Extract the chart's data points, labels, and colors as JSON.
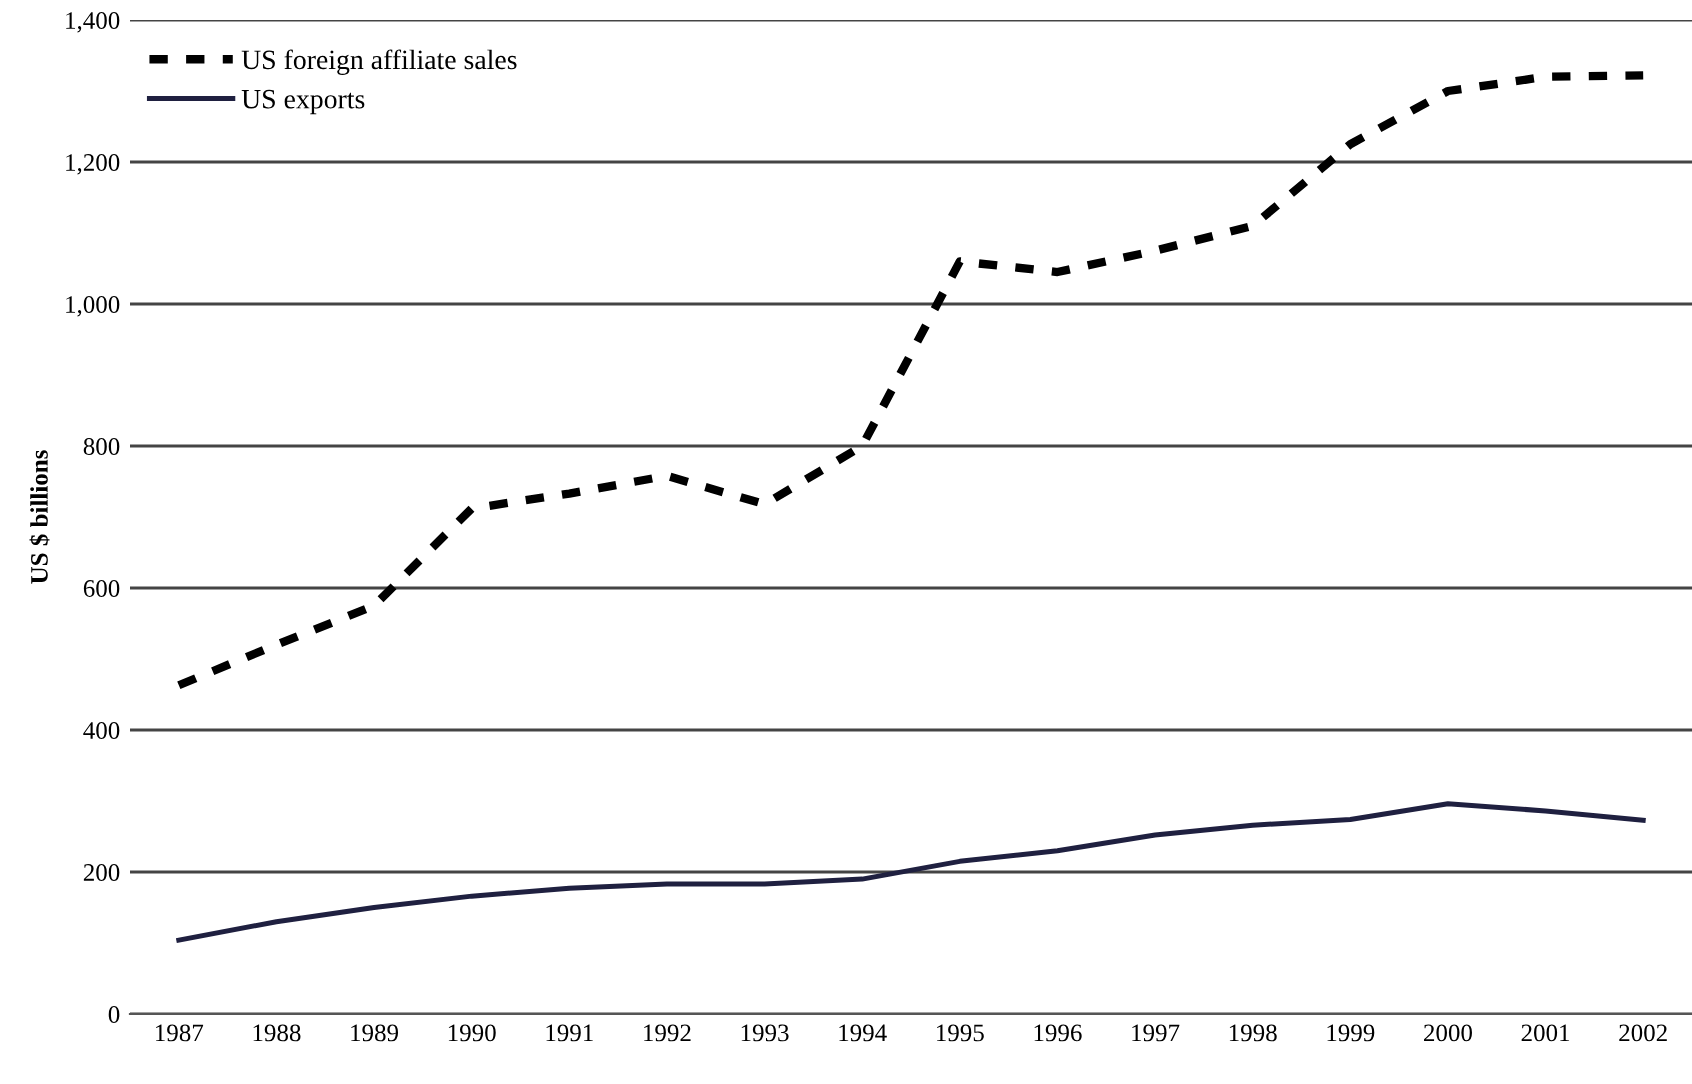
{
  "chart_data": {
    "type": "line",
    "ylabel": "US $ billions",
    "categories": [
      "1987",
      "1988",
      "1989",
      "1990",
      "1991",
      "1992",
      "1993",
      "1994",
      "1995",
      "1996",
      "1997",
      "1998",
      "1999",
      "2000",
      "2001",
      "2002"
    ],
    "series": [
      {
        "name": "US foreign affiliate sales",
        "color": "#000000",
        "line_style": "dashed",
        "values": [
          463,
          520,
          575,
          712,
          733,
          758,
          718,
          800,
          1060,
          1045,
          1075,
          1110,
          1225,
          1300,
          1320,
          1322
        ]
      },
      {
        "name": "US exports",
        "color": "#1f2040",
        "line_style": "solid",
        "values": [
          104,
          130,
          150,
          166,
          177,
          183,
          183,
          190,
          215,
          230,
          252,
          266,
          274,
          296,
          286,
          273
        ]
      }
    ],
    "ylim": [
      0,
      1400
    ],
    "yticks": [
      {
        "value": 0,
        "label": "0"
      },
      {
        "value": 200,
        "label": "200"
      },
      {
        "value": 400,
        "label": "400"
      },
      {
        "value": 600,
        "label": "600"
      },
      {
        "value": 800,
        "label": "800"
      },
      {
        "value": 1000,
        "label": "1,000"
      },
      {
        "value": 1200,
        "label": "1,200"
      },
      {
        "value": 1400,
        "label": "1,400"
      }
    ],
    "grid": "y",
    "legend": "top left"
  }
}
